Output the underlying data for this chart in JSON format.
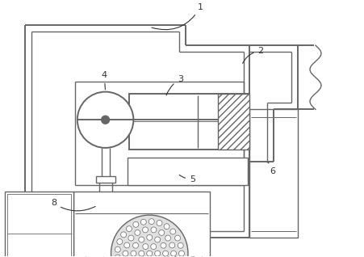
{
  "line_color": "#666666",
  "line_color2": "#888888",
  "lw": 1.0,
  "lw2": 1.4,
  "label_fs": 8,
  "label_color": "#333333",
  "dot_color": "#bbbbbb",
  "hatch_color": "#999999"
}
